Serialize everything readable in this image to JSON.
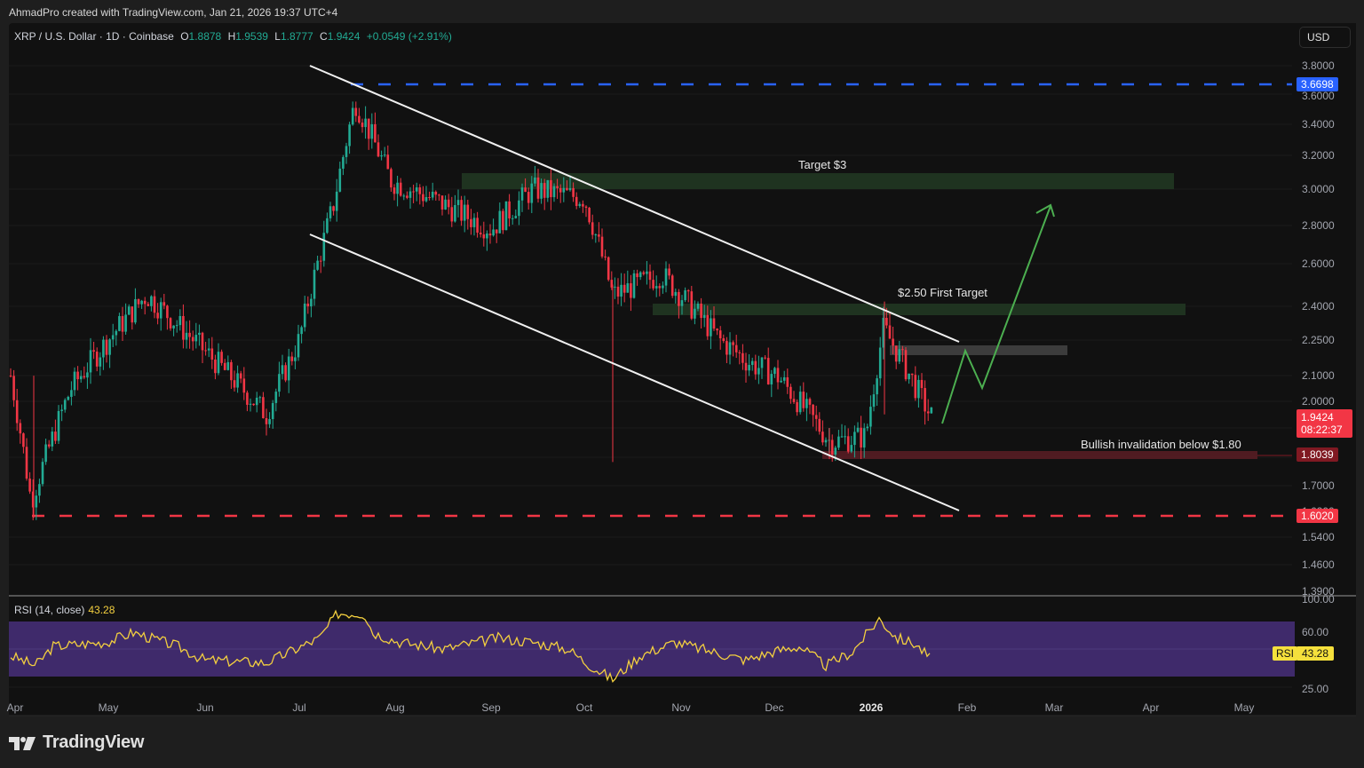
{
  "header": {
    "credit": "AhmadPro created with TradingView.com, Jan 21, 2026 19:37 UTC+4"
  },
  "legend": {
    "symbol": "XRP / U.S. Dollar · 1D · Coinbase",
    "o_label": "O",
    "o": "1.8878",
    "h_label": "H",
    "h": "1.9539",
    "l_label": "L",
    "l": "1.8777",
    "c_label": "C",
    "c": "1.9424",
    "change": "+0.0549 (+2.91%)"
  },
  "currency_button": "USD",
  "price_axis": {
    "ticks": [
      "3.8000",
      "3.6000",
      "3.4000",
      "3.2000",
      "3.0000",
      "2.8000",
      "2.6000",
      "2.4000",
      "2.2500",
      "2.1000",
      "2.0000",
      "1.7000",
      "1.6200",
      "1.5400",
      "1.4600",
      "1.3900"
    ],
    "tags": {
      "resistance": {
        "value": "3.6698",
        "color": "#2962ff"
      },
      "last_price": {
        "value": "1.9424",
        "countdown": "08:22:37",
        "color": "#f23645"
      },
      "invalidation": {
        "value": "1.8039",
        "color": "#801922"
      },
      "support": {
        "value": "1.6020",
        "color": "#f23645"
      }
    }
  },
  "annotations": {
    "target_3": "Target $3",
    "first_target": "$2.50 First Target",
    "invalidation": "Bullish invalidation below $1.80"
  },
  "rsi": {
    "label": "RSI (14, close)",
    "value": "43.28",
    "tag_label": "RSI",
    "ticks": [
      "100.00",
      "60.00",
      "25.00"
    ]
  },
  "time_axis": {
    "labels": [
      "Apr",
      "May",
      "Jun",
      "Jul",
      "Aug",
      "Sep",
      "Oct",
      "Nov",
      "Dec",
      "2026",
      "Feb",
      "Mar",
      "Apr",
      "May"
    ]
  },
  "logo": {
    "text": "TradingView"
  },
  "colors": {
    "up": "#22ab94",
    "down": "#f23645",
    "channel": "#ffffff",
    "target_zone": "#1f3320",
    "projection": "#4caf50",
    "rsi_band": "#3f2a6b",
    "rsi_line": "#f4d03f"
  },
  "chart_data": {
    "type": "candlestick",
    "title": "XRP / U.S. Dollar · 1D · Coinbase",
    "xlabel": "",
    "ylabel": "USD",
    "ylim": [
      1.39,
      3.8
    ],
    "x_ticks": [
      "Apr",
      "May",
      "Jun",
      "Jul",
      "Aug",
      "Sep",
      "Oct",
      "Nov",
      "Dec",
      "2026",
      "Feb",
      "Mar",
      "Apr",
      "May"
    ],
    "ohlc_last": {
      "open": 1.8878,
      "high": 1.9539,
      "low": 1.8777,
      "close": 1.9424,
      "change": 0.0549,
      "change_pct": 2.91
    },
    "approx_closes": {
      "x": [
        "Apr 1",
        "Apr 7",
        "Apr 15",
        "May 1",
        "May 12",
        "Jun 1",
        "Jun 22",
        "Jul 1",
        "Jul 10",
        "Jul 18",
        "Aug 1",
        "Aug 15",
        "Sep 1",
        "Sep 15",
        "Oct 1",
        "Oct 10",
        "Oct 25",
        "Nov 10",
        "Nov 20",
        "Dec 1",
        "Dec 18",
        "Dec 31",
        "Jan 6",
        "Jan 21"
      ],
      "values": [
        2.1,
        1.65,
        2.05,
        2.25,
        2.45,
        2.2,
        1.95,
        2.25,
        2.9,
        3.55,
        3.05,
        2.95,
        2.78,
        3.0,
        2.95,
        2.45,
        2.55,
        2.25,
        2.15,
        2.1,
        1.85,
        1.87,
        2.3,
        1.9424
      ]
    },
    "levels": [
      {
        "name": "All-time-high resistance (dashed)",
        "value": 3.6698
      },
      {
        "name": "Target $3 zone",
        "range": [
          3.0,
          3.08
        ]
      },
      {
        "name": "$2.50 First Target zone",
        "range": [
          2.37,
          2.42
        ]
      },
      {
        "name": "Gray resistance zone",
        "range": [
          2.2,
          2.25
        ]
      },
      {
        "name": "Bullish invalidation zone",
        "value": 1.8039
      },
      {
        "name": "Support (dashed)",
        "value": 1.602
      }
    ],
    "channel": {
      "upper": [
        {
          "x": "Jul 1",
          "y": 3.8
        },
        {
          "x": "Jan 25",
          "y": 2.25
        }
      ],
      "lower": [
        {
          "x": "Jul 1",
          "y": 2.75
        },
        {
          "x": "Jan 25",
          "y": 1.62
        }
      ]
    },
    "projection_path": [
      1.93,
      2.2,
      2.05,
      2.95
    ],
    "rsi": {
      "period": 14,
      "source": "close",
      "current": 43.28,
      "band": [
        30,
        70
      ],
      "ylim": [
        25,
        100
      ]
    }
  }
}
